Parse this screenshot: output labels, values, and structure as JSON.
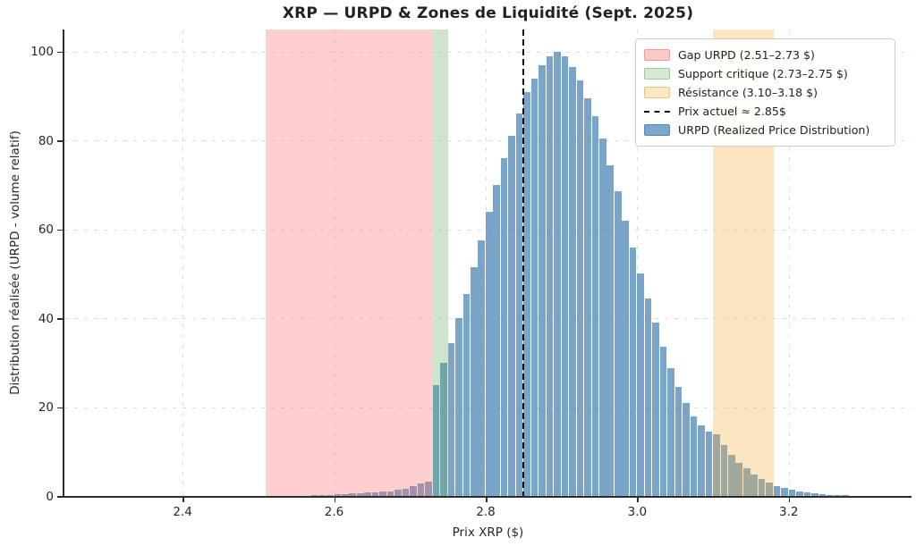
{
  "figure": {
    "title": "XRP — URPD & Zones de Liquidité (Sept. 2025)",
    "xlabel": "Prix XRP ($)",
    "ylabel": "Distribution réalisée (URPD - volume relatif)"
  },
  "legend": {
    "position": "upper right",
    "items": [
      {
        "name": "gap-urpd",
        "label": "Gap URPD (2.51–2.73 $)",
        "swatch": "patch",
        "fill": "#f8cbc8",
        "border": "#e99e99"
      },
      {
        "name": "support-critique",
        "label": "Support critique (2.73–2.75 $)",
        "swatch": "patch",
        "fill": "#d5e8d1",
        "border": "#a2c89f"
      },
      {
        "name": "resistance",
        "label": "Résistance (3.10–3.18 $)",
        "swatch": "patch",
        "fill": "#fce9c4",
        "border": "#e4c48b"
      },
      {
        "name": "prix-actuel",
        "label": "Prix actuel ≈ 2.85$",
        "swatch": "dashed-line",
        "color": "#111111"
      },
      {
        "name": "urpd",
        "label": "URPD (Realized Price Distribution)",
        "swatch": "patch",
        "fill": "#7ba7ca",
        "border": "#5687b0"
      }
    ]
  },
  "chart_data": {
    "type": "bar",
    "title": "XRP — URPD & Zones de Liquidité (Sept. 2025)",
    "xlabel": "Prix XRP ($)",
    "ylabel": "Distribution réalisée (URPD - volume relatif)",
    "xlim": [
      2.244,
      3.362
    ],
    "ylim": [
      0,
      105
    ],
    "x_ticks": [
      2.4,
      2.6,
      2.8,
      3.0,
      3.2
    ],
    "x_tick_labels": [
      "2.4",
      "2.6",
      "2.8",
      "3.0",
      "3.2"
    ],
    "y_ticks": [
      0,
      20,
      40,
      60,
      80,
      100
    ],
    "y_tick_labels": [
      "0",
      "20",
      "40",
      "60",
      "80",
      "100"
    ],
    "grid": true,
    "legend_position": "upper right",
    "bar_color": "rgba(70,130,180,0.72)",
    "bin_width": 0.01,
    "bins": [
      [
        2.56,
        0.1
      ],
      [
        2.57,
        0.15
      ],
      [
        2.58,
        0.2
      ],
      [
        2.59,
        0.3
      ],
      [
        2.6,
        0.4
      ],
      [
        2.61,
        0.5
      ],
      [
        2.62,
        0.6
      ],
      [
        2.63,
        0.65
      ],
      [
        2.64,
        0.75
      ],
      [
        2.65,
        0.85
      ],
      [
        2.66,
        0.95
      ],
      [
        2.67,
        1.1
      ],
      [
        2.68,
        1.4
      ],
      [
        2.69,
        1.7
      ],
      [
        2.7,
        2.2
      ],
      [
        2.71,
        2.8
      ],
      [
        2.72,
        3.3
      ],
      [
        2.73,
        25
      ],
      [
        2.74,
        30
      ],
      [
        2.75,
        34.5
      ],
      [
        2.76,
        40
      ],
      [
        2.77,
        45.5
      ],
      [
        2.78,
        51.5
      ],
      [
        2.79,
        57.5
      ],
      [
        2.8,
        64
      ],
      [
        2.81,
        70
      ],
      [
        2.82,
        76
      ],
      [
        2.83,
        81
      ],
      [
        2.84,
        86
      ],
      [
        2.85,
        91
      ],
      [
        2.86,
        94
      ],
      [
        2.87,
        97
      ],
      [
        2.88,
        99
      ],
      [
        2.89,
        100
      ],
      [
        2.9,
        99
      ],
      [
        2.91,
        96.5
      ],
      [
        2.92,
        93.5
      ],
      [
        2.93,
        89.5
      ],
      [
        2.94,
        85.5
      ],
      [
        2.95,
        80.5
      ],
      [
        2.96,
        74.5
      ],
      [
        2.97,
        68.5
      ],
      [
        2.98,
        62
      ],
      [
        2.99,
        56
      ],
      [
        3.0,
        50
      ],
      [
        3.01,
        44.5
      ],
      [
        3.02,
        39
      ],
      [
        3.03,
        33.5
      ],
      [
        3.04,
        28.7
      ],
      [
        3.05,
        24.5
      ],
      [
        3.06,
        21
      ],
      [
        3.07,
        18
      ],
      [
        3.08,
        15.8
      ],
      [
        3.09,
        14.5
      ],
      [
        3.1,
        13.8
      ],
      [
        3.11,
        11.5
      ],
      [
        3.12,
        9.3
      ],
      [
        3.13,
        7.4
      ],
      [
        3.14,
        6.2
      ],
      [
        3.15,
        4.8
      ],
      [
        3.16,
        3.8
      ],
      [
        3.17,
        3.0
      ],
      [
        3.18,
        2.3
      ],
      [
        3.19,
        1.9
      ],
      [
        3.2,
        1.5
      ],
      [
        3.21,
        1.1
      ],
      [
        3.22,
        0.8
      ],
      [
        3.23,
        0.6
      ],
      [
        3.24,
        0.45
      ],
      [
        3.25,
        0.3
      ],
      [
        3.26,
        0.2
      ],
      [
        3.27,
        0.12
      ]
    ],
    "zones": [
      {
        "name": "gap-urpd",
        "label": "Gap URPD (2.51–2.73 $)",
        "from": 2.51,
        "to": 2.73,
        "fill": "rgba(242,112,108,0.33)"
      },
      {
        "name": "support-critique",
        "label": "Support critique (2.73–2.75 $)",
        "from": 2.73,
        "to": 2.75,
        "fill": "rgba(96,164,96,0.30)"
      },
      {
        "name": "resistance",
        "label": "Résistance (3.10–3.18 $)",
        "from": 3.1,
        "to": 3.18,
        "fill": "rgba(247,178,64,0.33)"
      }
    ],
    "price_line": {
      "x": 2.85,
      "label": "Prix actuel ≈ 2.85$",
      "color": "#111111",
      "style": "dashed"
    }
  }
}
